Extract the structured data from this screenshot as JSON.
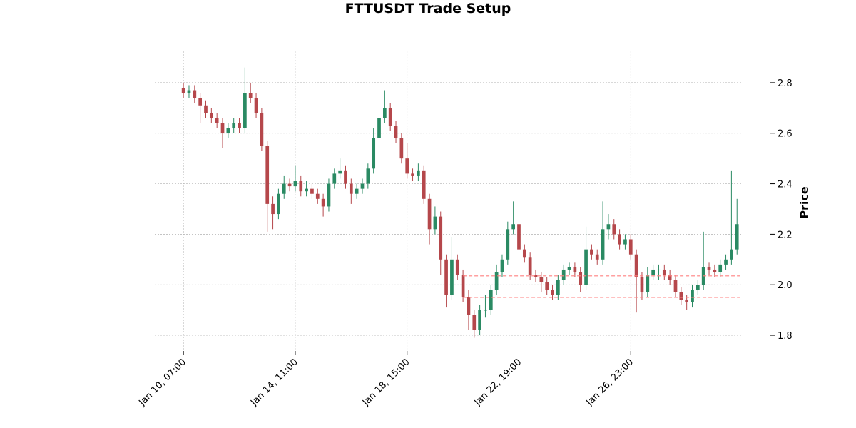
{
  "chart_data": {
    "type": "candlestick",
    "title": "FTTUSDT Trade Setup",
    "y_label": "Price",
    "x": [
      0,
      5,
      10,
      15,
      20,
      25,
      30,
      35,
      40,
      45,
      50,
      55,
      60,
      65,
      70,
      75,
      80,
      85,
      90,
      95,
      100,
      105,
      110,
      115,
      120,
      125,
      130,
      135,
      140,
      145,
      150,
      155,
      160,
      165,
      170,
      175,
      180,
      185,
      190,
      195,
      200,
      205,
      210,
      215,
      220,
      225,
      230,
      235,
      240,
      245,
      250,
      255,
      260,
      265,
      270,
      275,
      280,
      285,
      290,
      295,
      300,
      305,
      310,
      315,
      320,
      325,
      330,
      335,
      340,
      345,
      350,
      355,
      360,
      365,
      370,
      375,
      380,
      385,
      390,
      395,
      400,
      405,
      410,
      415,
      420,
      425,
      430,
      435,
      440,
      445,
      450,
      455,
      460,
      465,
      470,
      475,
      480,
      485,
      490,
      495
    ],
    "open": [
      2.78,
      2.76,
      2.77,
      2.74,
      2.71,
      2.68,
      2.66,
      2.64,
      2.6,
      2.62,
      2.64,
      2.62,
      2.76,
      2.74,
      2.68,
      2.55,
      2.32,
      2.28,
      2.36,
      2.4,
      2.39,
      2.41,
      2.37,
      2.38,
      2.36,
      2.34,
      2.31,
      2.4,
      2.44,
      2.45,
      2.4,
      2.36,
      2.38,
      2.4,
      2.46,
      2.58,
      2.66,
      2.7,
      2.63,
      2.58,
      2.5,
      2.44,
      2.43,
      2.45,
      2.34,
      2.22,
      2.27,
      2.1,
      1.96,
      2.1,
      2.04,
      1.95,
      1.88,
      1.82,
      1.9,
      1.9,
      1.98,
      2.05,
      2.1,
      2.22,
      2.24,
      2.14,
      2.11,
      2.04,
      2.03,
      2.01,
      1.98,
      1.96,
      2.02,
      2.06,
      2.07,
      2.05,
      2.0,
      2.14,
      2.12,
      2.1,
      2.22,
      2.24,
      2.2,
      2.16,
      2.18,
      2.12,
      2.03,
      1.97,
      2.04,
      2.06,
      2.06,
      2.04,
      2.02,
      1.97,
      1.94,
      1.93,
      1.98,
      2.0,
      2.07,
      2.06,
      2.05,
      2.08,
      2.1,
      2.14
    ],
    "high": [
      2.8,
      2.79,
      2.79,
      2.76,
      2.73,
      2.7,
      2.68,
      2.66,
      2.64,
      2.66,
      2.66,
      2.86,
      2.8,
      2.76,
      2.7,
      2.57,
      2.35,
      2.38,
      2.43,
      2.42,
      2.47,
      2.43,
      2.41,
      2.4,
      2.38,
      2.36,
      2.42,
      2.46,
      2.5,
      2.47,
      2.42,
      2.4,
      2.42,
      2.48,
      2.62,
      2.72,
      2.77,
      2.72,
      2.65,
      2.6,
      2.56,
      2.46,
      2.48,
      2.47,
      2.36,
      2.31,
      2.29,
      2.12,
      2.19,
      2.12,
      2.06,
      1.98,
      1.9,
      1.92,
      1.96,
      2.0,
      2.08,
      2.12,
      2.25,
      2.33,
      2.26,
      2.16,
      2.13,
      2.06,
      2.05,
      2.03,
      2.0,
      2.04,
      2.08,
      2.09,
      2.09,
      2.07,
      2.23,
      2.16,
      2.14,
      2.33,
      2.28,
      2.26,
      2.22,
      2.2,
      2.2,
      2.14,
      2.05,
      2.07,
      2.08,
      2.08,
      2.08,
      2.06,
      2.04,
      1.99,
      1.96,
      2.0,
      2.02,
      2.21,
      2.09,
      2.08,
      2.1,
      2.12,
      2.45,
      2.34
    ],
    "low": [
      2.74,
      2.74,
      2.72,
      2.64,
      2.66,
      2.64,
      2.62,
      2.54,
      2.58,
      2.6,
      2.6,
      2.6,
      2.72,
      2.66,
      2.53,
      2.21,
      2.22,
      2.26,
      2.34,
      2.37,
      2.37,
      2.35,
      2.35,
      2.34,
      2.32,
      2.27,
      2.29,
      2.38,
      2.42,
      2.38,
      2.32,
      2.34,
      2.36,
      2.38,
      2.44,
      2.56,
      2.64,
      2.61,
      2.56,
      2.48,
      2.42,
      2.41,
      2.41,
      2.32,
      2.16,
      2.2,
      2.04,
      1.91,
      1.94,
      2.02,
      1.93,
      1.82,
      1.79,
      1.8,
      1.87,
      1.88,
      1.96,
      2.03,
      2.08,
      2.2,
      2.12,
      2.09,
      2.02,
      2.01,
      1.97,
      1.96,
      1.94,
      1.94,
      2.0,
      2.04,
      2.03,
      1.97,
      1.98,
      2.1,
      2.08,
      2.08,
      2.18,
      2.18,
      2.14,
      2.14,
      2.1,
      1.89,
      1.94,
      1.95,
      2.02,
      2.02,
      2.02,
      2.0,
      1.95,
      1.92,
      1.9,
      1.91,
      1.96,
      1.98,
      2.04,
      2.03,
      2.03,
      2.06,
      2.08,
      2.12
    ],
    "close": [
      2.76,
      2.77,
      2.74,
      2.71,
      2.68,
      2.66,
      2.64,
      2.6,
      2.62,
      2.64,
      2.62,
      2.76,
      2.74,
      2.68,
      2.55,
      2.32,
      2.28,
      2.36,
      2.4,
      2.39,
      2.41,
      2.37,
      2.38,
      2.36,
      2.34,
      2.31,
      2.4,
      2.44,
      2.45,
      2.4,
      2.36,
      2.38,
      2.4,
      2.46,
      2.58,
      2.66,
      2.7,
      2.63,
      2.58,
      2.5,
      2.44,
      2.43,
      2.45,
      2.34,
      2.22,
      2.27,
      2.1,
      1.96,
      2.1,
      2.04,
      1.95,
      1.88,
      1.82,
      1.9,
      1.9,
      1.98,
      2.05,
      2.1,
      2.22,
      2.24,
      2.14,
      2.11,
      2.04,
      2.03,
      2.01,
      1.98,
      1.96,
      2.02,
      2.06,
      2.07,
      2.05,
      2.0,
      2.14,
      2.12,
      2.1,
      2.22,
      2.24,
      2.2,
      2.16,
      2.18,
      2.12,
      2.03,
      1.97,
      2.04,
      2.06,
      2.06,
      2.04,
      2.02,
      1.97,
      1.94,
      1.93,
      1.98,
      2.0,
      2.07,
      2.06,
      2.05,
      2.08,
      2.1,
      2.14,
      2.24
    ],
    "up_color": "#2a8a63",
    "down_color": "#b5474b",
    "hlines": [
      {
        "y": 2.035,
        "x": [
          250,
          498
        ],
        "color": "#ff8080"
      },
      {
        "y": 1.95,
        "x": [
          250,
          498
        ],
        "color": "#ff8080"
      }
    ],
    "xlim": [
      -25.6,
      500.6
    ],
    "ylim": [
      1.738,
      2.924
    ],
    "xticks": [
      {
        "value": 0,
        "label": "Jan 10, 07:00"
      },
      {
        "value": 100,
        "label": "Jan 14, 11:00"
      },
      {
        "value": 200,
        "label": "Jan 18, 15:00"
      },
      {
        "value": 300,
        "label": "Jan 22, 19:00"
      },
      {
        "value": 400,
        "label": "Jan 26, 23:00"
      }
    ],
    "yticks": [
      1.8,
      {
        "value": 2,
        "label": "2.0"
      },
      2.2,
      2.4,
      2.6,
      2.8
    ],
    "grid": true
  }
}
